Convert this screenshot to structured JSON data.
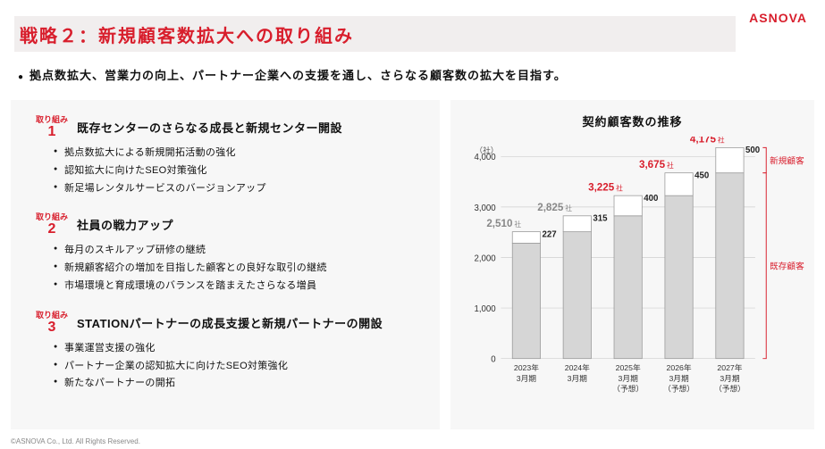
{
  "brand": {
    "logo": "ASNOVA",
    "logo_color": "#d81e2c"
  },
  "title": {
    "text": "戦略２：新規顧客数拡大への取り組み",
    "color": "#d81e2c"
  },
  "subhead": "拠点数拡大、営業力の向上、パートナー企業への支援を通し、さらなる顧客数の拡大を目指す。",
  "tag_label": "取り組み",
  "tag_color": "#d81e2c",
  "initiatives": [
    {
      "num": "1",
      "title": "既存センターのさらなる成長と新規センター開設",
      "bullets": [
        "拠点数拡大による新規開拓活動の強化",
        "認知拡大に向けたSEO対策強化",
        "新足場レンタルサービスのバージョンアップ"
      ]
    },
    {
      "num": "2",
      "title": "社員の戦力アップ",
      "bullets": [
        "毎月のスキルアップ研修の継続",
        "新規顧客紹介の増加を目指した顧客との良好な取引の継続",
        "市場環境と育成環境のバランスを踏まえたさらなる増員"
      ]
    },
    {
      "num": "3",
      "title": "STATIONパートナーの成長支援と新規パートナーの開設",
      "bullets": [
        "事業運営支援の強化",
        "パートナー企業の認知拡大に向けたSEO対策強化",
        "新たなパートナーの開拓"
      ]
    }
  ],
  "chart": {
    "title": "契約顧客数の推移",
    "y_unit": "（社）",
    "ylim": [
      0,
      4000
    ],
    "ytick_step": 1000,
    "yticks": [
      0,
      1000,
      2000,
      3000,
      4000
    ],
    "grid_color": "#cfcfcf",
    "categories": [
      {
        "l1": "2023年",
        "l2": "3月期",
        "forecast": false
      },
      {
        "l1": "2024年",
        "l2": "3月期",
        "forecast": false
      },
      {
        "l1": "2025年",
        "l2": "3月期",
        "l3": "（予想）",
        "forecast": true
      },
      {
        "l1": "2026年",
        "l2": "3月期",
        "l3": "（予想）",
        "forecast": true
      },
      {
        "l1": "2027年",
        "l2": "3月期",
        "l3": "（予想）",
        "forecast": true
      }
    ],
    "series": {
      "existing": [
        2283,
        2510,
        2825,
        3225,
        3675
      ],
      "new": [
        227,
        315,
        400,
        450,
        500
      ]
    },
    "totals": [
      2510,
      2825,
      3225,
      3675,
      4175
    ],
    "bar_width": 0.55,
    "colors": {
      "existing": "#d6d6d6",
      "new": "#ffffff",
      "border": "#999999",
      "forecast_total": "#d81e2c",
      "actual_total": "#888888"
    },
    "legend": {
      "new": "新規顧客",
      "existing": "既存顧客",
      "color": "#d81e2c"
    },
    "unit_suffix": "社"
  },
  "footer": "©ASNOVA Co., Ltd. All Rights Reserved."
}
